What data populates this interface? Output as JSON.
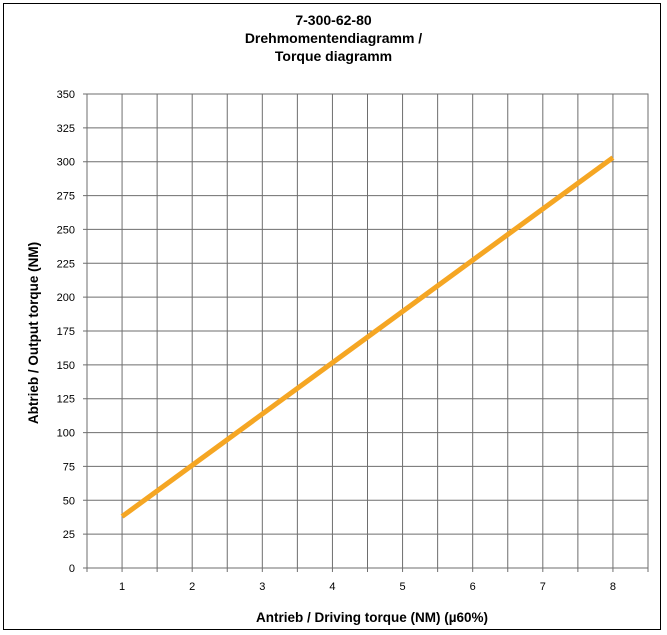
{
  "chart_data": {
    "type": "line",
    "title_lines": [
      "7-300-62-80",
      "Drehmomentendiagramm /",
      "Torque diagramm"
    ],
    "xlabel": "Antrieb / Driving torque (NM) (µ60%)",
    "ylabel": "Abtrieb / Output torque  (NM)",
    "x_ticks": [
      1,
      2,
      3,
      4,
      5,
      6,
      7,
      8
    ],
    "y_ticks": [
      0,
      25,
      50,
      75,
      100,
      125,
      150,
      175,
      200,
      225,
      250,
      275,
      300,
      325,
      350
    ],
    "xlim": [
      0.5,
      8.5
    ],
    "ylim": [
      0,
      350
    ],
    "grid": true,
    "series": [
      {
        "x": [
          1,
          8
        ],
        "y": [
          38,
          303
        ],
        "color": "#F5A623"
      }
    ]
  }
}
